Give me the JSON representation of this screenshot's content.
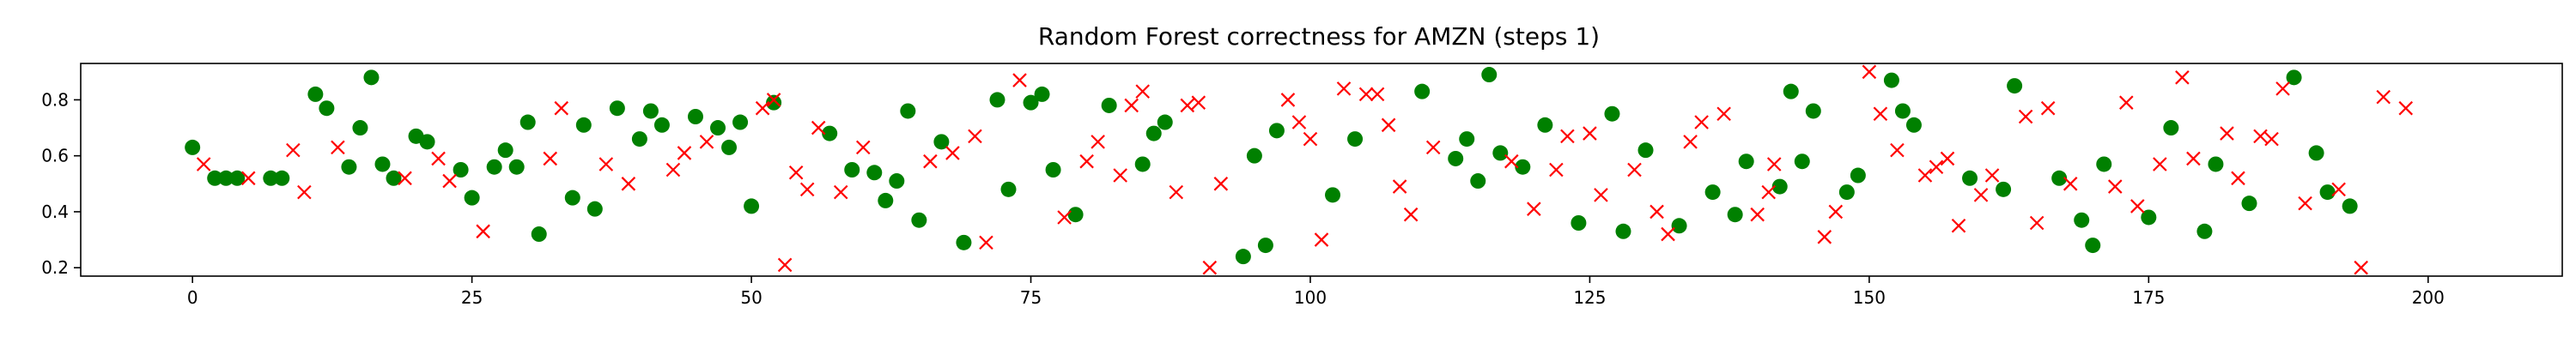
{
  "chart_data": {
    "type": "scatter",
    "title": "Random Forest correctness for AMZN (steps 1)",
    "xlabel": "",
    "ylabel": "",
    "xlim": [
      -10,
      212
    ],
    "ylim": [
      0.17,
      0.93
    ],
    "x_ticks": [
      0,
      25,
      50,
      75,
      100,
      125,
      150,
      175,
      200
    ],
    "y_ticks": [
      0.2,
      0.4,
      0.6,
      0.8
    ],
    "grid": false,
    "legend": false,
    "series": [
      {
        "marker": "circle",
        "color": "#008000",
        "points": [
          [
            0,
            0.63
          ],
          [
            2,
            0.52
          ],
          [
            3,
            0.52
          ],
          [
            4,
            0.52
          ],
          [
            7,
            0.52
          ],
          [
            8,
            0.52
          ],
          [
            11,
            0.82
          ],
          [
            12,
            0.77
          ],
          [
            14,
            0.56
          ],
          [
            15,
            0.7
          ],
          [
            16,
            0.88
          ],
          [
            17,
            0.57
          ],
          [
            18,
            0.52
          ],
          [
            20,
            0.67
          ],
          [
            21,
            0.65
          ],
          [
            24,
            0.55
          ],
          [
            25,
            0.45
          ],
          [
            27,
            0.56
          ],
          [
            28,
            0.62
          ],
          [
            29,
            0.56
          ],
          [
            30,
            0.72
          ],
          [
            31,
            0.32
          ],
          [
            34,
            0.45
          ],
          [
            35,
            0.71
          ],
          [
            36,
            0.41
          ],
          [
            38,
            0.77
          ],
          [
            40,
            0.66
          ],
          [
            41,
            0.76
          ],
          [
            42,
            0.71
          ],
          [
            45,
            0.74
          ],
          [
            47,
            0.7
          ],
          [
            48,
            0.63
          ],
          [
            49,
            0.72
          ],
          [
            50,
            0.42
          ],
          [
            52,
            0.79
          ],
          [
            57,
            0.68
          ],
          [
            59,
            0.55
          ],
          [
            61,
            0.54
          ],
          [
            62,
            0.44
          ],
          [
            63,
            0.51
          ],
          [
            64,
            0.76
          ],
          [
            65,
            0.37
          ],
          [
            67,
            0.65
          ],
          [
            69,
            0.29
          ],
          [
            72,
            0.8
          ],
          [
            73,
            0.48
          ],
          [
            75,
            0.79
          ],
          [
            76,
            0.82
          ],
          [
            77,
            0.55
          ],
          [
            79,
            0.39
          ],
          [
            82,
            0.78
          ],
          [
            85,
            0.57
          ],
          [
            86,
            0.68
          ],
          [
            87,
            0.72
          ],
          [
            94,
            0.24
          ],
          [
            95,
            0.6
          ],
          [
            96,
            0.28
          ],
          [
            97,
            0.69
          ],
          [
            102,
            0.46
          ],
          [
            104,
            0.66
          ],
          [
            110,
            0.83
          ],
          [
            113,
            0.59
          ],
          [
            114,
            0.66
          ],
          [
            115,
            0.51
          ],
          [
            116,
            0.89
          ],
          [
            117,
            0.61
          ],
          [
            119,
            0.56
          ],
          [
            121,
            0.71
          ],
          [
            124,
            0.36
          ],
          [
            127,
            0.75
          ],
          [
            128,
            0.33
          ],
          [
            130,
            0.62
          ],
          [
            133,
            0.35
          ],
          [
            136,
            0.47
          ],
          [
            138,
            0.39
          ],
          [
            139,
            0.58
          ],
          [
            142,
            0.49
          ],
          [
            143,
            0.83
          ],
          [
            144,
            0.58
          ],
          [
            145,
            0.76
          ],
          [
            148,
            0.47
          ],
          [
            149,
            0.53
          ],
          [
            152,
            0.87
          ],
          [
            153,
            0.76
          ],
          [
            154,
            0.71
          ],
          [
            159,
            0.52
          ],
          [
            162,
            0.48
          ],
          [
            163,
            0.85
          ],
          [
            167,
            0.52
          ],
          [
            169,
            0.37
          ],
          [
            170,
            0.28
          ],
          [
            171,
            0.57
          ],
          [
            175,
            0.38
          ],
          [
            177,
            0.7
          ],
          [
            180,
            0.33
          ],
          [
            181,
            0.57
          ],
          [
            184,
            0.43
          ],
          [
            188,
            0.88
          ],
          [
            190,
            0.61
          ],
          [
            191,
            0.47
          ],
          [
            193,
            0.42
          ]
        ]
      },
      {
        "marker": "x",
        "color": "#ff0000",
        "points": [
          [
            1,
            0.57
          ],
          [
            5,
            0.52
          ],
          [
            9,
            0.62
          ],
          [
            10,
            0.47
          ],
          [
            13,
            0.63
          ],
          [
            19,
            0.52
          ],
          [
            22,
            0.59
          ],
          [
            23,
            0.51
          ],
          [
            26,
            0.33
          ],
          [
            32,
            0.59
          ],
          [
            33,
            0.77
          ],
          [
            37,
            0.57
          ],
          [
            39,
            0.5
          ],
          [
            43,
            0.55
          ],
          [
            44,
            0.61
          ],
          [
            46,
            0.65
          ],
          [
            51,
            0.77
          ],
          [
            52,
            0.8
          ],
          [
            53,
            0.21
          ],
          [
            54,
            0.54
          ],
          [
            55,
            0.48
          ],
          [
            56,
            0.7
          ],
          [
            58,
            0.47
          ],
          [
            60,
            0.63
          ],
          [
            66,
            0.58
          ],
          [
            68,
            0.61
          ],
          [
            70,
            0.67
          ],
          [
            71,
            0.29
          ],
          [
            74,
            0.87
          ],
          [
            78,
            0.38
          ],
          [
            80,
            0.58
          ],
          [
            81,
            0.65
          ],
          [
            83,
            0.53
          ],
          [
            84,
            0.78
          ],
          [
            85,
            0.83
          ],
          [
            88,
            0.47
          ],
          [
            89,
            0.78
          ],
          [
            90,
            0.79
          ],
          [
            91,
            0.2
          ],
          [
            92,
            0.5
          ],
          [
            98,
            0.8
          ],
          [
            99,
            0.72
          ],
          [
            100,
            0.66
          ],
          [
            101,
            0.3
          ],
          [
            103,
            0.84
          ],
          [
            105,
            0.82
          ],
          [
            106,
            0.82
          ],
          [
            107,
            0.71
          ],
          [
            108,
            0.49
          ],
          [
            109,
            0.39
          ],
          [
            111,
            0.63
          ],
          [
            118,
            0.58
          ],
          [
            120,
            0.41
          ],
          [
            122,
            0.55
          ],
          [
            123,
            0.67
          ],
          [
            125,
            0.68
          ],
          [
            126,
            0.46
          ],
          [
            129,
            0.55
          ],
          [
            131,
            0.4
          ],
          [
            132,
            0.32
          ],
          [
            134,
            0.65
          ],
          [
            135,
            0.72
          ],
          [
            137,
            0.75
          ],
          [
            140,
            0.39
          ],
          [
            141,
            0.47
          ],
          [
            141.5,
            0.57
          ],
          [
            146,
            0.31
          ],
          [
            147,
            0.4
          ],
          [
            150,
            0.9
          ],
          [
            151,
            0.75
          ],
          [
            152.5,
            0.62
          ],
          [
            155,
            0.53
          ],
          [
            156,
            0.56
          ],
          [
            157,
            0.59
          ],
          [
            158,
            0.35
          ],
          [
            160,
            0.46
          ],
          [
            161,
            0.53
          ],
          [
            164,
            0.74
          ],
          [
            165,
            0.36
          ],
          [
            166,
            0.77
          ],
          [
            168,
            0.5
          ],
          [
            172,
            0.49
          ],
          [
            173,
            0.79
          ],
          [
            174,
            0.42
          ],
          [
            176,
            0.57
          ],
          [
            178,
            0.88
          ],
          [
            179,
            0.59
          ],
          [
            182,
            0.68
          ],
          [
            183,
            0.52
          ],
          [
            185,
            0.67
          ],
          [
            186,
            0.66
          ],
          [
            187,
            0.84
          ],
          [
            189,
            0.43
          ],
          [
            192,
            0.48
          ],
          [
            194,
            0.2
          ],
          [
            196,
            0.81
          ],
          [
            198,
            0.77
          ]
        ]
      }
    ]
  }
}
